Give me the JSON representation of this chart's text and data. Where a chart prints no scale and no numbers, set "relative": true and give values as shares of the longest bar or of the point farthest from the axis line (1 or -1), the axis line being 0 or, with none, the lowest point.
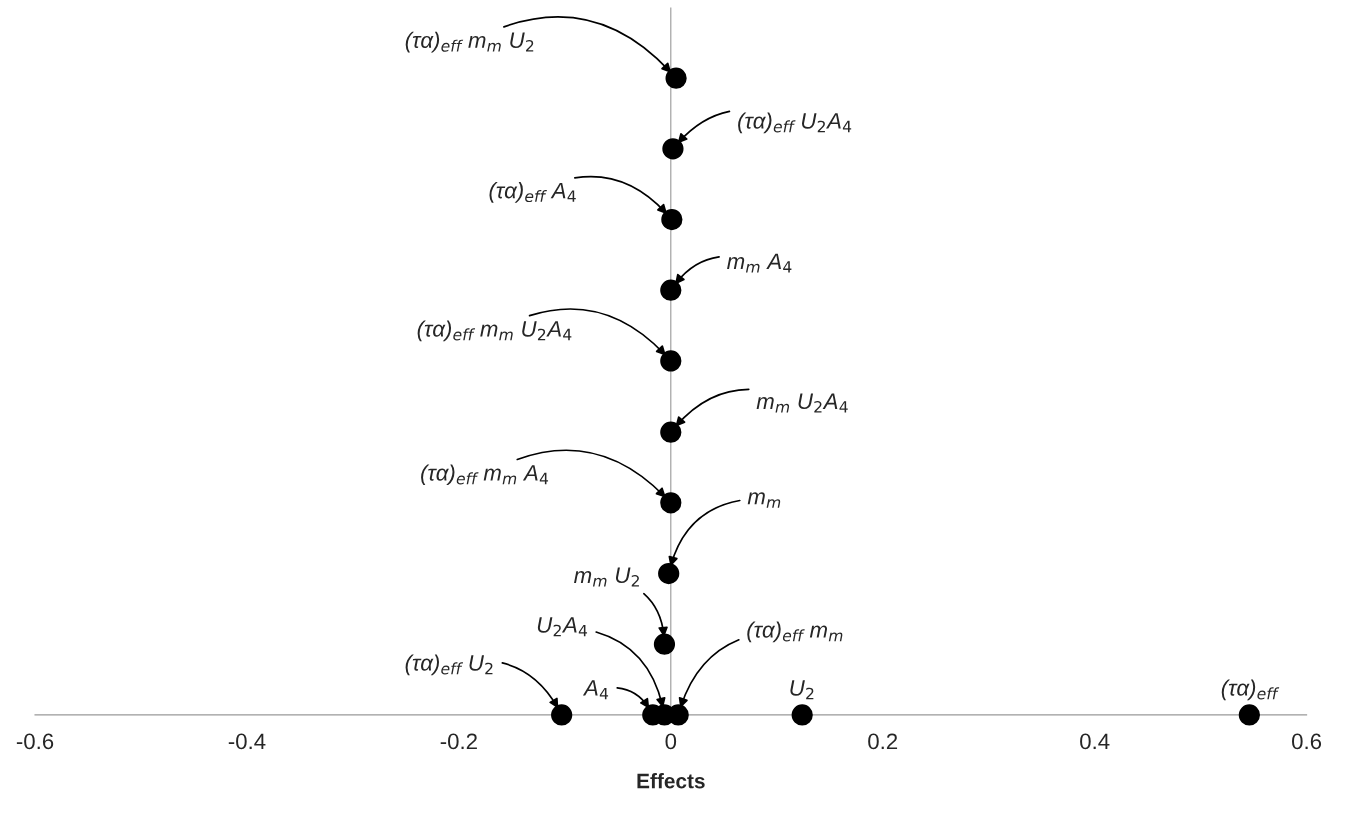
{
  "chart_data": {
    "type": "scatter",
    "relative": true,
    "marker": "circle",
    "color": "#000000",
    "tick_labels": "x",
    "x": [
      0.546,
      0.124,
      -0.103,
      -0.017,
      -0.006,
      0.007,
      -0.006,
      -0.002,
      0,
      0,
      0,
      0,
      0.001,
      0.002,
      0.005
    ],
    "values": [
      0,
      0,
      0,
      0,
      0,
      0,
      0.111,
      0.222,
      0.333,
      0.444,
      0.556,
      0.667,
      0.778,
      0.889,
      1
    ],
    "xlim": [
      -0.6,
      0.6
    ],
    "xticks": [
      -0.6,
      -0.4,
      -0.2,
      0,
      0.2,
      0.4,
      0.6
    ],
    "xlabel": "Effects",
    "annotations": [
      {
        "text": "(τα)$_{eff}$",
        "x": 0.546,
        "y": 0
      },
      {
        "text": "U$_{2}$",
        "x": 0.124,
        "y": 0
      },
      {
        "text": "(τα)$_{eff}$ U$_{2}$",
        "x": -0.103,
        "y": 0
      },
      {
        "text": "A$_{4}$",
        "x": -0.017,
        "y": 0
      },
      {
        "text": "U$_{2}$A$_{4}$",
        "x": -0.006,
        "y": 0
      },
      {
        "text": "(τα)$_{eff}$ m$_{m}$",
        "x": 0.007,
        "y": 0
      },
      {
        "text": "m$_{m}$ U$_{2}$",
        "x": -0.006,
        "y": 0.111
      },
      {
        "text": "m$_{m}$",
        "x": -0.002,
        "y": 0.222
      },
      {
        "text": "(τα)$_{eff}$ m$_{m}$ A$_{4}$",
        "x": 0,
        "y": 0.333
      },
      {
        "text": "m$_{m}$ U$_{2}$A$_{4}$",
        "x": 0,
        "y": 0.444
      },
      {
        "text": "(τα)$_{eff}$ m$_{m}$ U$_{2}$A$_{4}$",
        "x": 0,
        "y": 0.556
      },
      {
        "text": "m$_{m}$ A$_{4}$",
        "x": 0,
        "y": 0.667
      },
      {
        "text": "(τα)$_{eff}$ A$_{4}$",
        "x": 0.001,
        "y": 0.778
      },
      {
        "text": "(τα)$_{eff}$ U$_{2}$A$_{4}$",
        "x": 0.002,
        "y": 0.889
      },
      {
        "text": "(τα)$_{eff}$ m$_{m}$ U$_{2}$",
        "x": 0.005,
        "y": 1
      }
    ]
  }
}
